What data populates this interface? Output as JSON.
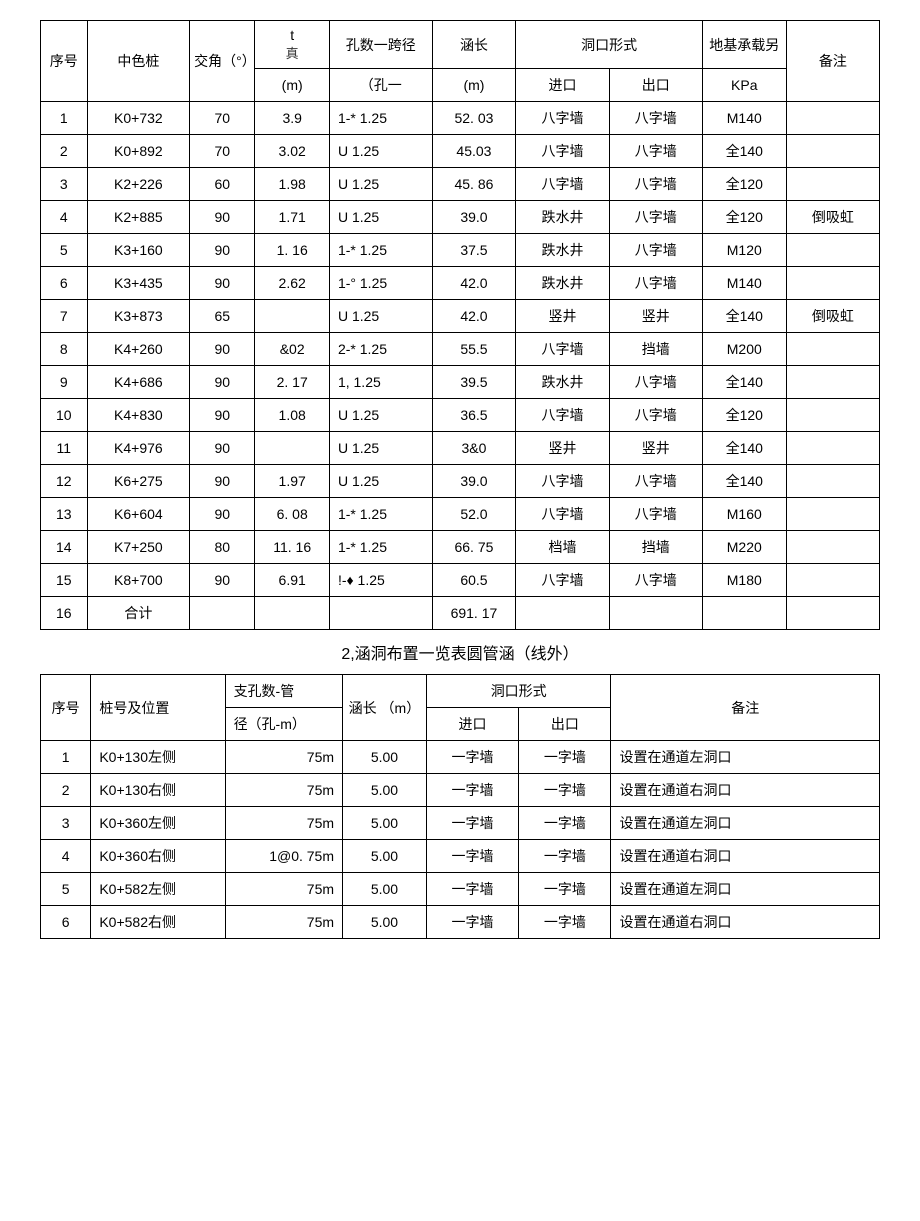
{
  "table1": {
    "headers": {
      "seq": "序号",
      "pile": "中色桩",
      "angle": "交角（°）",
      "t_top": "t",
      "t_mid": "真",
      "t_unit": "(m)",
      "span": "孔数一跨径",
      "span_unit": "（孔一",
      "length": "涵长",
      "length_unit": "(m)",
      "opening": "洞口形式",
      "inlet": "进口",
      "outlet": "出口",
      "bearing": "地基承载另",
      "bearing_unit": "KPa",
      "remark": "备注"
    },
    "rows": [
      {
        "seq": "1",
        "pile": "K0+732",
        "angle": "70",
        "t": "3.9",
        "span": "1-* 1.25",
        "len": "52. 03",
        "in": "八字墙",
        "out": "八字墙",
        "bear": "M140",
        "rem": ""
      },
      {
        "seq": "2",
        "pile": "K0+892",
        "angle": "70",
        "t": "3.02",
        "span": "U   1.25",
        "len": "45.03",
        "in": "八字墙",
        "out": "八字墙",
        "bear": "全140",
        "rem": ""
      },
      {
        "seq": "3",
        "pile": "K2+226",
        "angle": "60",
        "t": "1.98",
        "span": "U   1.25",
        "len": "45. 86",
        "in": "八字墙",
        "out": "八字墙",
        "bear": "全120",
        "rem": ""
      },
      {
        "seq": "4",
        "pile": "K2+885",
        "angle": "90",
        "t": "1.71",
        "span": "U   1.25",
        "len": "39.0",
        "in": "跌水井",
        "out": "八字墙",
        "bear": "全120",
        "rem": "倒吸虹"
      },
      {
        "seq": "5",
        "pile": "K3+160",
        "angle": "90",
        "t": "1. 16",
        "span": "1-* 1.25",
        "len": "37.5",
        "in": "跌水井",
        "out": "八字墙",
        "bear": "M120",
        "rem": ""
      },
      {
        "seq": "6",
        "pile": "K3+435",
        "angle": "90",
        "t": "2.62",
        "span": "1-° 1.25",
        "len": "42.0",
        "in": "跌水井",
        "out": "八字墙",
        "bear": "M140",
        "rem": ""
      },
      {
        "seq": "7",
        "pile": "K3+873",
        "angle": "65",
        "t": "",
        "span": "U   1.25",
        "len": "42.0",
        "in": "竖井",
        "out": "竖井",
        "bear": "全140",
        "rem": "倒吸虹"
      },
      {
        "seq": "8",
        "pile": "K4+260",
        "angle": "90",
        "t": "&02",
        "span": "2-* 1.25",
        "len": "55.5",
        "in": "八字墙",
        "out": "挡墙",
        "bear": "M200",
        "rem": ""
      },
      {
        "seq": "9",
        "pile": "K4+686",
        "angle": "90",
        "t": "2. 17",
        "span": "1,   1.25",
        "len": "39.5",
        "in": "跌水井",
        "out": "八字墙",
        "bear": "全140",
        "rem": ""
      },
      {
        "seq": "10",
        "pile": "K4+830",
        "angle": "90",
        "t": "1.08",
        "span": "U   1.25",
        "len": "36.5",
        "in": "八字墙",
        "out": "八字墙",
        "bear": "全120",
        "rem": ""
      },
      {
        "seq": "11",
        "pile": "K4+976",
        "angle": "90",
        "t": "",
        "span": "U   1.25",
        "len": "3&0",
        "in": "竖井",
        "out": "竖井",
        "bear": "全140",
        "rem": ""
      },
      {
        "seq": "12",
        "pile": "K6+275",
        "angle": "90",
        "t": "1.97",
        "span": "U   1.25",
        "len": "39.0",
        "in": "八字墙",
        "out": "八字墙",
        "bear": "全140",
        "rem": ""
      },
      {
        "seq": "13",
        "pile": "K6+604",
        "angle": "90",
        "t": "6. 08",
        "span": "1-* 1.25",
        "len": "52.0",
        "in": "八字墙",
        "out": "八字墙",
        "bear": "M160",
        "rem": ""
      },
      {
        "seq": "14",
        "pile": "K7+250",
        "angle": "80",
        "t": "11. 16",
        "span": "1-* 1.25",
        "len": "66. 75",
        "in": "档墙",
        "out": "挡墙",
        "bear": "M220",
        "rem": ""
      },
      {
        "seq": "15",
        "pile": "K8+700",
        "angle": "90",
        "t": "6.91",
        "span": "!-♦ 1.25",
        "len": "60.5",
        "in": "八字墙",
        "out": "八字墙",
        "bear": "M180",
        "rem": ""
      },
      {
        "seq": "16",
        "pile": "合计",
        "angle": "",
        "t": "",
        "span": "",
        "len": "691. 17",
        "in": "",
        "out": "",
        "bear": "",
        "rem": ""
      }
    ]
  },
  "section_title": "2,涵洞布置一览表圆管涵（线外）",
  "table2": {
    "headers": {
      "seq": "序号",
      "pile": "桩号及位置",
      "span_top": "支孔数-管",
      "span_bot": "径（孔-m）",
      "length": "涵长 （m）",
      "opening": "洞口形式",
      "inlet": "进口",
      "outlet": "出口",
      "remark": "备注"
    },
    "rows": [
      {
        "seq": "1",
        "pile": "K0+130左侧",
        "span": "75m",
        "len": "5.00",
        "in": "一字墙",
        "out": "一字墙",
        "rem": "设置在通道左洞口"
      },
      {
        "seq": "2",
        "pile": "K0+130右侧",
        "span": "75m",
        "len": "5.00",
        "in": "一字墙",
        "out": "一字墙",
        "rem": "设置在通道右洞口"
      },
      {
        "seq": "3",
        "pile": "K0+360左侧",
        "span": "75m",
        "len": "5.00",
        "in": "一字墙",
        "out": "一字墙",
        "rem": "设置在通道左洞口"
      },
      {
        "seq": "4",
        "pile": "K0+360右侧",
        "span": "1@0. 75m",
        "len": "5.00",
        "in": "一字墙",
        "out": "一字墙",
        "rem": "设置在通道右洞口"
      },
      {
        "seq": "5",
        "pile": "K0+582左侧",
        "span": "75m",
        "len": "5.00",
        "in": "一字墙",
        "out": "一字墙",
        "rem": "设置在通道左洞口"
      },
      {
        "seq": "6",
        "pile": "K0+582右侧",
        "span": "75m",
        "len": "5.00",
        "in": "一字墙",
        "out": "一字墙",
        "rem": "设置在通道右洞口"
      }
    ]
  }
}
